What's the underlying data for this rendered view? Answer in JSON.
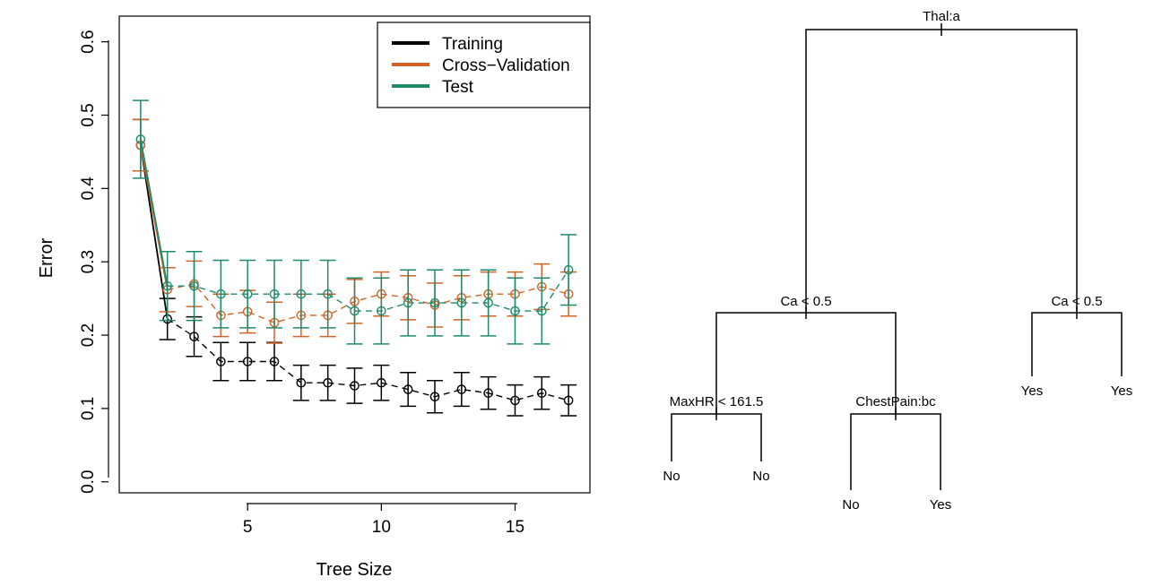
{
  "chart_data": [
    {
      "type": "line",
      "xlabel": "Tree Size",
      "ylabel": "Error",
      "xlim": [
        0.2,
        17.8
      ],
      "ylim": [
        -0.015,
        0.635
      ],
      "xticks": [
        5,
        10,
        15
      ],
      "yticks": [
        0.0,
        0.1,
        0.2,
        0.3,
        0.4,
        0.5,
        0.6
      ],
      "ytick_labels": [
        "0.0",
        "0.1",
        "0.2",
        "0.3",
        "0.4",
        "0.5",
        "0.6"
      ],
      "legend_position": "top-right",
      "x": [
        1,
        2,
        3,
        4,
        5,
        6,
        7,
        8,
        9,
        10,
        11,
        12,
        13,
        14,
        15,
        16,
        17
      ],
      "series": [
        {
          "name": "Training",
          "color": "#000000",
          "values": [
            0.459,
            0.222,
            0.198,
            0.164,
            0.164,
            0.164,
            0.135,
            0.135,
            0.131,
            0.135,
            0.126,
            0.116,
            0.126,
            0.121,
            0.111,
            0.121,
            0.111
          ],
          "err": [
            0.035,
            0.028,
            0.027,
            0.026,
            0.026,
            0.026,
            0.024,
            0.024,
            0.024,
            0.024,
            0.023,
            0.022,
            0.023,
            0.022,
            0.021,
            0.022,
            0.021
          ]
        },
        {
          "name": "Cross−Validation",
          "color": "#d06428",
          "values": [
            0.459,
            0.262,
            0.27,
            0.227,
            0.232,
            0.217,
            0.227,
            0.227,
            0.246,
            0.256,
            0.251,
            0.241,
            0.251,
            0.256,
            0.256,
            0.266,
            0.256
          ],
          "err": [
            0.035,
            0.03,
            0.031,
            0.029,
            0.029,
            0.028,
            0.029,
            0.029,
            0.03,
            0.03,
            0.03,
            0.03,
            0.03,
            0.03,
            0.03,
            0.031,
            0.03
          ]
        },
        {
          "name": "Test",
          "color": "#1f8a6a",
          "values": [
            0.467,
            0.267,
            0.267,
            0.256,
            0.256,
            0.256,
            0.256,
            0.256,
            0.233,
            0.233,
            0.244,
            0.244,
            0.244,
            0.244,
            0.233,
            0.233,
            0.289
          ],
          "err": [
            0.053,
            0.047,
            0.047,
            0.046,
            0.046,
            0.046,
            0.046,
            0.046,
            0.045,
            0.045,
            0.045,
            0.045,
            0.045,
            0.045,
            0.045,
            0.045,
            0.048
          ]
        }
      ]
    },
    {
      "type": "tree",
      "tree": {
        "label": "Thal:a",
        "children": [
          {
            "label": "Ca < 0.5",
            "children": [
              {
                "label": "MaxHR < 161.5",
                "children": [
                  {
                    "label": "No"
                  },
                  {
                    "label": "No"
                  }
                ]
              },
              {
                "label": "ChestPain:bc",
                "children": [
                  {
                    "label": "No"
                  },
                  {
                    "label": "Yes"
                  }
                ]
              }
            ]
          },
          {
            "label": "Ca < 0.5",
            "children": [
              {
                "label": "Yes"
              },
              {
                "label": "Yes"
              }
            ]
          }
        ]
      }
    }
  ]
}
